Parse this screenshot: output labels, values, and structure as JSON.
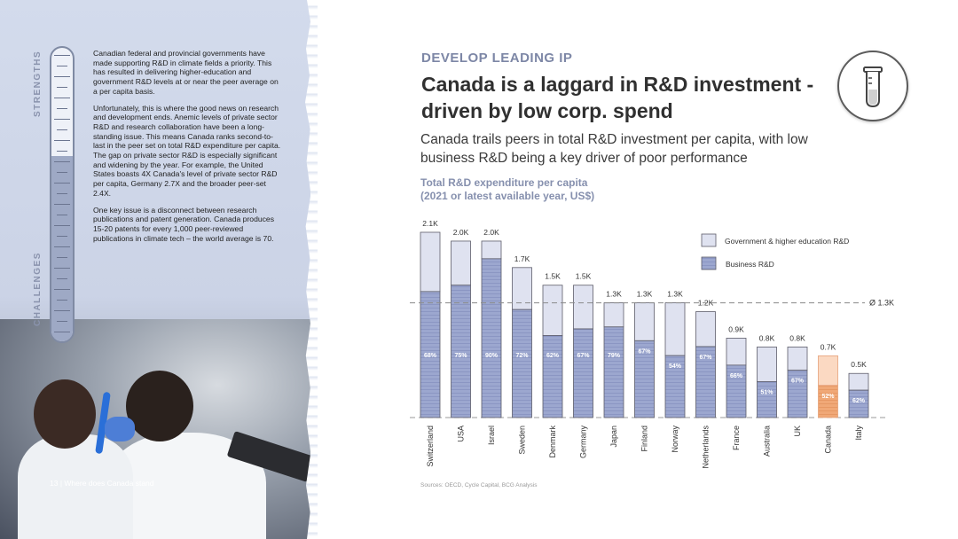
{
  "left_panel": {
    "label_top": "STRENGTHS",
    "label_bottom": "CHALLENGES",
    "paragraphs": [
      "Canadian federal and provincial governments have made supporting R&D in climate fields a priority. This has resulted in delivering higher-education and government R&D levels at or near the peer average on a per capita basis.",
      "Unfortunately, this is where the good news on research and development ends. Anemic levels of private sector R&D and research collaboration have been a long-standing issue. This means Canada ranks second-to-last in the peer set on total R&D expenditure per capita. The gap on private sector R&D is especially significant and widening by the year. For example, the United States boasts 4X Canada's level of private sector R&D per capita, Germany 2.7X and the broader peer-set 2.4X.",
      "One key issue is a disconnect between research publications and patent generation. Canada produces 15-20 patents for every 1,000 peer-reviewed publications in climate tech – the world average is 70."
    ],
    "meter_level": 0.63,
    "footer": "13  |  Where does Canada stand"
  },
  "header": {
    "kicker": "DEVELOP LEADING IP",
    "title": "Canada is a laggard in R&D investment - driven by low corp. spend",
    "subtitle": "Canada trails peers in total R&D investment per capita, with low business R&D being a key driver of poor performance",
    "icon": "test-tube-icon"
  },
  "chart_heading": {
    "line1": "Total R&D expenditure per capita",
    "line2": "(2021 or latest available year, US$)"
  },
  "sources": "Sources: OECD, Cycle Capital, BCG Analysis",
  "chart_data": {
    "type": "bar",
    "stacked": true,
    "categories": [
      "Switzerland",
      "USA",
      "Israel",
      "Sweden",
      "Denmark",
      "Germany",
      "Japan",
      "Finland",
      "Norway",
      "Netherlands",
      "France",
      "Australia",
      "UK",
      "Canada",
      "Italy"
    ],
    "totals": [
      2.1,
      2.0,
      2.0,
      1.7,
      1.5,
      1.5,
      1.3,
      1.3,
      1.3,
      1.2,
      0.9,
      0.8,
      0.8,
      0.7,
      0.5
    ],
    "total_labels": [
      "2.1K",
      "2.0K",
      "2.0K",
      "1.7K",
      "1.5K",
      "1.5K",
      "1.3K",
      "1.3K",
      "1.3K",
      "1.2K",
      "0.9K",
      "0.8K",
      "0.8K",
      "0.7K",
      "0.5K"
    ],
    "business_share_labels": [
      "68%",
      "75%",
      "90%",
      "72%",
      "62%",
      "67%",
      "79%",
      "67%",
      "54%",
      "67%",
      "66%",
      "51%",
      "67%",
      "52%",
      "62%"
    ],
    "business_share": [
      0.68,
      0.75,
      0.9,
      0.72,
      0.62,
      0.67,
      0.79,
      0.67,
      0.54,
      0.67,
      0.66,
      0.51,
      0.67,
      0.52,
      0.62
    ],
    "series": [
      {
        "name": "Government & higher education R&D",
        "color": "#dfe2f0"
      },
      {
        "name": "Business R&D",
        "color": "#9ca7cf"
      }
    ],
    "highlight": {
      "category": "Canada",
      "gov_color": "#fbd9c2",
      "biz_color": "#f0a877"
    },
    "average_label": "Ø 1.3K",
    "average": 1.3,
    "ylim": [
      0,
      2.1
    ],
    "legend_position": "top-right",
    "grid": false
  }
}
